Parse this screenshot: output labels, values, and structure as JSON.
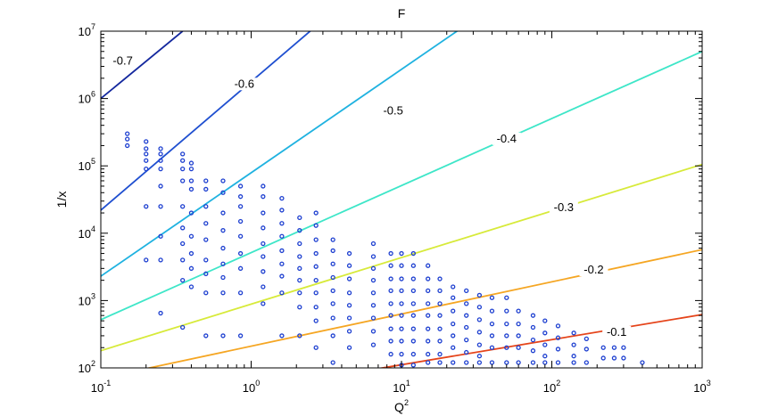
{
  "chart_data": {
    "type": "scatter",
    "title": "F",
    "xlabel": "Q",
    "xlabel_sup": "2",
    "ylabel": "1/x",
    "xscale": "log",
    "yscale": "log",
    "xlim": [
      0.1,
      1000
    ],
    "ylim": [
      100,
      10000000
    ],
    "grid": false,
    "x_ticks": [
      {
        "base": "10",
        "exp": "-1",
        "value": 0.1
      },
      {
        "base": "10",
        "exp": "0",
        "value": 1
      },
      {
        "base": "10",
        "exp": "1",
        "value": 10
      },
      {
        "base": "10",
        "exp": "2",
        "value": 100
      },
      {
        "base": "10",
        "exp": "3",
        "value": 1000
      }
    ],
    "y_ticks": [
      {
        "base": "10",
        "exp": "2",
        "value": 100
      },
      {
        "base": "10",
        "exp": "3",
        "value": 1000
      },
      {
        "base": "10",
        "exp": "4",
        "value": 10000
      },
      {
        "base": "10",
        "exp": "5",
        "value": 100000
      },
      {
        "base": "10",
        "exp": "6",
        "value": 1000000
      },
      {
        "base": "10",
        "exp": "7",
        "value": 10000000
      }
    ],
    "contours": [
      {
        "label": "-0.7",
        "color": "#14289e",
        "points": [
          [
            0.1,
            1000000
          ],
          [
            0.35,
            10000000
          ]
        ],
        "label_at": [
          0.14,
          3300000
        ]
      },
      {
        "label": "-0.6",
        "color": "#1f4fd0",
        "points": [
          [
            0.1,
            22000
          ],
          [
            1000,
            950000000000
          ]
        ],
        "label_at": [
          0.9,
          1500000
        ]
      },
      {
        "label": "-0.5",
        "color": "#1fb2e0",
        "points": [
          [
            0.1,
            2300
          ],
          [
            1000,
            3200000000
          ]
        ],
        "label_at": [
          8.8,
          600000
        ]
      },
      {
        "label": "-0.4",
        "color": "#3ee6c8",
        "points": [
          [
            0.1,
            520
          ],
          [
            1000,
            5000000
          ]
        ],
        "label_at": [
          50,
          230000
        ]
      },
      {
        "label": "-0.3",
        "color": "#d7ea3a",
        "points": [
          [
            0.1,
            180
          ],
          [
            1000,
            105000
          ]
        ],
        "label_at": [
          120,
          22000
        ]
      },
      {
        "label": "-0.2",
        "color": "#f5a623",
        "points": [
          [
            0.1,
            70
          ],
          [
            1000,
            5700
          ]
        ],
        "label_at": [
          190,
          2600
        ]
      },
      {
        "label": "-0.1",
        "color": "#e5441a",
        "points": [
          [
            0.1,
            20
          ],
          [
            1000,
            620
          ]
        ],
        "label_at": [
          270,
          310
        ]
      }
    ],
    "series": [
      {
        "marker": "circle",
        "color": "#1d3fd0",
        "points": [
          [
            0.15,
            300000
          ],
          [
            0.15,
            250000
          ],
          [
            0.15,
            200000
          ],
          [
            0.2,
            230000
          ],
          [
            0.2,
            180000
          ],
          [
            0.2,
            150000
          ],
          [
            0.2,
            120000
          ],
          [
            0.2,
            90000
          ],
          [
            0.2,
            25000
          ],
          [
            0.2,
            4000
          ],
          [
            0.25,
            180000
          ],
          [
            0.25,
            150000
          ],
          [
            0.25,
            120000
          ],
          [
            0.25,
            90000
          ],
          [
            0.25,
            50000
          ],
          [
            0.25,
            25000
          ],
          [
            0.25,
            9000
          ],
          [
            0.25,
            4000
          ],
          [
            0.25,
            650
          ],
          [
            0.35,
            150000
          ],
          [
            0.35,
            120000
          ],
          [
            0.35,
            90000
          ],
          [
            0.35,
            60000
          ],
          [
            0.35,
            25000
          ],
          [
            0.35,
            12000
          ],
          [
            0.35,
            7000
          ],
          [
            0.35,
            4000
          ],
          [
            0.35,
            2000
          ],
          [
            0.35,
            400
          ],
          [
            0.4,
            110000
          ],
          [
            0.4,
            90000
          ],
          [
            0.4,
            60000
          ],
          [
            0.4,
            45000
          ],
          [
            0.4,
            20000
          ],
          [
            0.4,
            9000
          ],
          [
            0.4,
            5000
          ],
          [
            0.4,
            3000
          ],
          [
            0.4,
            1600
          ],
          [
            0.5,
            60000
          ],
          [
            0.5,
            45000
          ],
          [
            0.5,
            25000
          ],
          [
            0.5,
            14000
          ],
          [
            0.5,
            8000
          ],
          [
            0.5,
            4000
          ],
          [
            0.5,
            2500
          ],
          [
            0.5,
            1300
          ],
          [
            0.5,
            300
          ],
          [
            0.65,
            60000
          ],
          [
            0.65,
            40000
          ],
          [
            0.65,
            20000
          ],
          [
            0.65,
            11000
          ],
          [
            0.65,
            6000
          ],
          [
            0.65,
            3500
          ],
          [
            0.65,
            2200
          ],
          [
            0.65,
            1300
          ],
          [
            0.65,
            300
          ],
          [
            0.85,
            50000
          ],
          [
            0.85,
            35000
          ],
          [
            0.85,
            25000
          ],
          [
            0.85,
            15000
          ],
          [
            0.85,
            9000
          ],
          [
            0.85,
            5000
          ],
          [
            0.85,
            3000
          ],
          [
            0.85,
            1300
          ],
          [
            0.85,
            300
          ],
          [
            1.2,
            50000
          ],
          [
            1.2,
            35000
          ],
          [
            1.2,
            20000
          ],
          [
            1.2,
            12000
          ],
          [
            1.2,
            7000
          ],
          [
            1.2,
            4500
          ],
          [
            1.2,
            2700
          ],
          [
            1.2,
            1600
          ],
          [
            1.2,
            900
          ],
          [
            1.6,
            33000
          ],
          [
            1.6,
            22000
          ],
          [
            1.6,
            14000
          ],
          [
            1.6,
            9000
          ],
          [
            1.6,
            5500
          ],
          [
            1.6,
            3500
          ],
          [
            1.6,
            2300
          ],
          [
            1.6,
            1300
          ],
          [
            1.6,
            300
          ],
          [
            2.1,
            17000
          ],
          [
            2.1,
            11000
          ],
          [
            2.1,
            7000
          ],
          [
            2.1,
            4500
          ],
          [
            2.1,
            3000
          ],
          [
            2.1,
            2000
          ],
          [
            2.1,
            1300
          ],
          [
            2.1,
            800
          ],
          [
            2.1,
            300
          ],
          [
            2.7,
            20000
          ],
          [
            2.7,
            13000
          ],
          [
            2.7,
            8000
          ],
          [
            2.7,
            5000
          ],
          [
            2.7,
            3200
          ],
          [
            2.7,
            2000
          ],
          [
            2.7,
            1300
          ],
          [
            2.7,
            800
          ],
          [
            2.7,
            500
          ],
          [
            2.7,
            200
          ],
          [
            3.5,
            8000
          ],
          [
            3.5,
            5500
          ],
          [
            3.5,
            3500
          ],
          [
            3.5,
            2200
          ],
          [
            3.5,
            1400
          ],
          [
            3.5,
            900
          ],
          [
            3.5,
            550
          ],
          [
            3.5,
            300
          ],
          [
            3.5,
            120
          ],
          [
            4.5,
            5000
          ],
          [
            4.5,
            3300
          ],
          [
            4.5,
            2100
          ],
          [
            4.5,
            1300
          ],
          [
            4.5,
            850
          ],
          [
            4.5,
            550
          ],
          [
            4.5,
            350
          ],
          [
            4.5,
            200
          ],
          [
            6.5,
            7000
          ],
          [
            6.5,
            4500
          ],
          [
            6.5,
            3000
          ],
          [
            6.5,
            2000
          ],
          [
            6.5,
            1300
          ],
          [
            6.5,
            850
          ],
          [
            6.5,
            550
          ],
          [
            6.5,
            350
          ],
          [
            6.5,
            220
          ],
          [
            8.5,
            5000
          ],
          [
            8.5,
            3300
          ],
          [
            8.5,
            2100
          ],
          [
            8.5,
            1400
          ],
          [
            8.5,
            900
          ],
          [
            8.5,
            600
          ],
          [
            8.5,
            380
          ],
          [
            8.5,
            250
          ],
          [
            8.5,
            160
          ],
          [
            10,
            5000
          ],
          [
            10,
            3300
          ],
          [
            10,
            2100
          ],
          [
            10,
            1400
          ],
          [
            10,
            900
          ],
          [
            10,
            600
          ],
          [
            10,
            380
          ],
          [
            10,
            250
          ],
          [
            10,
            160
          ],
          [
            10,
            110
          ],
          [
            12,
            5000
          ],
          [
            12,
            3300
          ],
          [
            12,
            2100
          ],
          [
            12,
            1400
          ],
          [
            12,
            900
          ],
          [
            12,
            600
          ],
          [
            12,
            380
          ],
          [
            12,
            250
          ],
          [
            12,
            160
          ],
          [
            12,
            110
          ],
          [
            15,
            3300
          ],
          [
            15,
            2100
          ],
          [
            15,
            1400
          ],
          [
            15,
            900
          ],
          [
            15,
            600
          ],
          [
            15,
            380
          ],
          [
            15,
            250
          ],
          [
            15,
            160
          ],
          [
            15,
            120
          ],
          [
            18,
            2100
          ],
          [
            18,
            1400
          ],
          [
            18,
            900
          ],
          [
            18,
            600
          ],
          [
            18,
            380
          ],
          [
            18,
            250
          ],
          [
            18,
            160
          ],
          [
            18,
            120
          ],
          [
            22,
            1600
          ],
          [
            22,
            1100
          ],
          [
            22,
            700
          ],
          [
            22,
            450
          ],
          [
            22,
            300
          ],
          [
            22,
            200
          ],
          [
            22,
            120
          ],
          [
            27,
            1400
          ],
          [
            27,
            900
          ],
          [
            27,
            600
          ],
          [
            27,
            400
          ],
          [
            27,
            260
          ],
          [
            27,
            170
          ],
          [
            27,
            120
          ],
          [
            33,
            1200
          ],
          [
            33,
            800
          ],
          [
            33,
            520
          ],
          [
            33,
            340
          ],
          [
            33,
            220
          ],
          [
            33,
            150
          ],
          [
            33,
            120
          ],
          [
            40,
            1100
          ],
          [
            40,
            700
          ],
          [
            40,
            450
          ],
          [
            40,
            300
          ],
          [
            40,
            200
          ],
          [
            40,
            120
          ],
          [
            50,
            1100
          ],
          [
            50,
            700
          ],
          [
            50,
            450
          ],
          [
            50,
            300
          ],
          [
            50,
            200
          ],
          [
            50,
            120
          ],
          [
            60,
            700
          ],
          [
            60,
            450
          ],
          [
            60,
            300
          ],
          [
            60,
            200
          ],
          [
            60,
            120
          ],
          [
            75,
            600
          ],
          [
            75,
            400
          ],
          [
            75,
            260
          ],
          [
            75,
            180
          ],
          [
            75,
            120
          ],
          [
            90,
            500
          ],
          [
            90,
            330
          ],
          [
            90,
            220
          ],
          [
            90,
            150
          ],
          [
            90,
            120
          ],
          [
            110,
            420
          ],
          [
            110,
            280
          ],
          [
            110,
            190
          ],
          [
            110,
            120
          ],
          [
            140,
            330
          ],
          [
            140,
            220
          ],
          [
            140,
            150
          ],
          [
            140,
            120
          ],
          [
            170,
            270
          ],
          [
            170,
            190
          ],
          [
            170,
            120
          ],
          [
            220,
            200
          ],
          [
            220,
            140
          ],
          [
            260,
            200
          ],
          [
            260,
            140
          ],
          [
            300,
            200
          ],
          [
            300,
            140
          ],
          [
            400,
            120
          ]
        ]
      }
    ]
  }
}
